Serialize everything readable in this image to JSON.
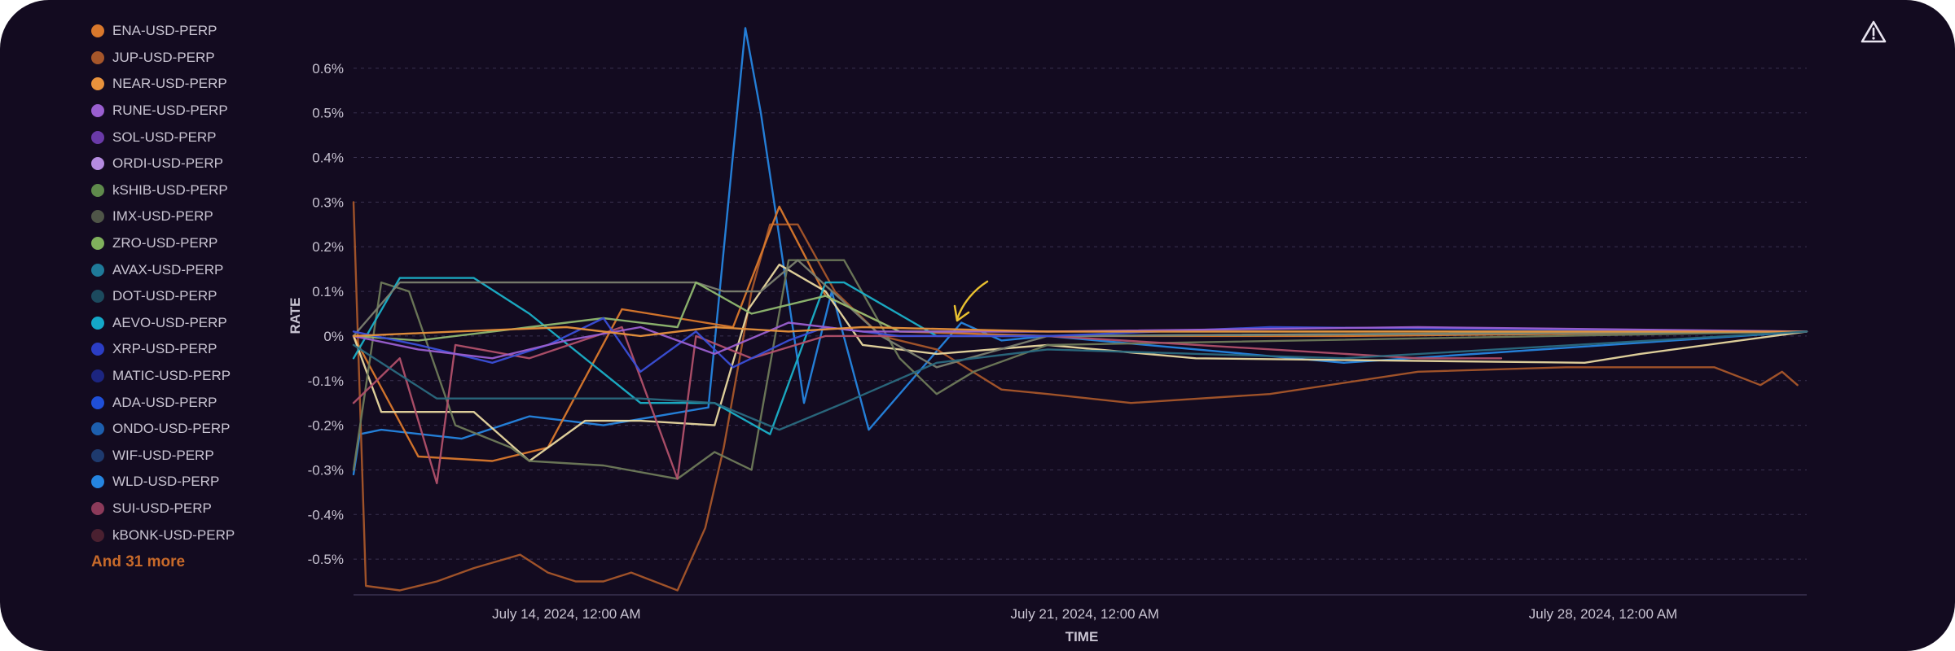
{
  "legend": {
    "items": [
      {
        "label": "ENA-USD-PERP",
        "color": "#d9782c"
      },
      {
        "label": "JUP-USD-PERP",
        "color": "#a6562a"
      },
      {
        "label": "NEAR-USD-PERP",
        "color": "#e8923c"
      },
      {
        "label": "RUNE-USD-PERP",
        "color": "#9a5fd0"
      },
      {
        "label": "SOL-USD-PERP",
        "color": "#6a3aa8"
      },
      {
        "label": "ORDI-USD-PERP",
        "color": "#b58be0"
      },
      {
        "label": "kSHIB-USD-PERP",
        "color": "#5f8a4c"
      },
      {
        "label": "IMX-USD-PERP",
        "color": "#4f5548"
      },
      {
        "label": "ZRO-USD-PERP",
        "color": "#7fb05c"
      },
      {
        "label": "AVAX-USD-PERP",
        "color": "#1f7a99"
      },
      {
        "label": "DOT-USD-PERP",
        "color": "#1c4a5e"
      },
      {
        "label": "AEVO-USD-PERP",
        "color": "#14a8c8"
      },
      {
        "label": "XRP-USD-PERP",
        "color": "#2b3dc4"
      },
      {
        "label": "MATIC-USD-PERP",
        "color": "#1c2580"
      },
      {
        "label": "ADA-USD-PERP",
        "color": "#1f4fd8"
      },
      {
        "label": "ONDO-USD-PERP",
        "color": "#1d5fae"
      },
      {
        "label": "WIF-USD-PERP",
        "color": "#1e3a6e"
      },
      {
        "label": "WLD-USD-PERP",
        "color": "#2585e0"
      },
      {
        "label": "SUI-USD-PERP",
        "color": "#8c3a5a"
      },
      {
        "label": "kBONK-USD-PERP",
        "color": "#4a2030"
      }
    ],
    "more_label": "And 31 more"
  },
  "toolbar": {
    "warning_icon": "warning-triangle-icon"
  },
  "chart_data": {
    "type": "line",
    "xlabel": "TIME",
    "ylabel": "RATE",
    "x_domain": [
      "2024-07-11T15:00",
      "2024-07-31T06:00"
    ],
    "x_ticks": [
      {
        "at": "2024-07-14T12:00",
        "label": "July 14, 2024, 12:00 AM"
      },
      {
        "at": "2024-07-21T12:00",
        "label": "July 21, 2024, 12:00 AM"
      },
      {
        "at": "2024-07-28T12:00",
        "label": "July 28, 2024, 12:00 AM"
      }
    ],
    "ylim": [
      -0.58,
      0.68
    ],
    "y_ticks": [
      0.6,
      0.5,
      0.4,
      0.3,
      0.2,
      0.1,
      0,
      -0.1,
      -0.2,
      -0.3,
      -0.4,
      -0.5
    ],
    "y_tick_labels": [
      "0.6%",
      "0.5%",
      "0.4%",
      "0.3%",
      "0.2%",
      "0.1%",
      "0%",
      "-0.1%",
      "-0.2%",
      "-0.3%",
      "-0.4%",
      "-0.5%"
    ],
    "grid": true,
    "legend_position": "left",
    "series": [
      {
        "name": "WLD-USD-PERP",
        "color": "#2585e0",
        "x": [
          "2024-07-11T15:00",
          "2024-07-11T17:00",
          "2024-07-12T00:00",
          "2024-07-13T02:00",
          "2024-07-14T00:00",
          "2024-07-15T00:00",
          "2024-07-16T10:00",
          "2024-07-16T22:00",
          "2024-07-17T03:00",
          "2024-07-17T17:00",
          "2024-07-18T02:00",
          "2024-07-18T14:00",
          "2024-07-19T20:00",
          "2024-07-20T09:00",
          "2024-07-21T00:00",
          "2024-07-25T00:00",
          "2024-07-31T06:00"
        ],
        "y": [
          -0.31,
          -0.22,
          -0.21,
          -0.23,
          -0.18,
          -0.2,
          -0.16,
          0.69,
          0.5,
          -0.15,
          0.1,
          -0.21,
          0.03,
          -0.01,
          0.0,
          -0.06,
          0.01
        ]
      },
      {
        "name": "JUP-USD-PERP",
        "color": "#a6562a",
        "x": [
          "2024-07-11T15:00",
          "2024-07-11T19:00",
          "2024-07-12T06:00",
          "2024-07-12T18:00",
          "2024-07-13T06:00",
          "2024-07-13T21:00",
          "2024-07-14T06:00",
          "2024-07-14T15:00",
          "2024-07-15T00:00",
          "2024-07-15T09:00",
          "2024-07-16T00:00",
          "2024-07-16T09:00",
          "2024-07-16T15:00",
          "2024-07-17T00:00",
          "2024-07-17T06:00",
          "2024-07-17T15:00",
          "2024-07-18T03:00",
          "2024-07-18T18:00",
          "2024-07-19T12:00",
          "2024-07-20T09:00",
          "2024-07-21T00:00",
          "2024-07-22T03:00",
          "2024-07-24T00:00",
          "2024-07-26T00:00",
          "2024-07-28T00:00",
          "2024-07-30T00:00",
          "2024-07-30T15:00",
          "2024-07-30T22:00",
          "2024-07-31T03:00"
        ],
        "y": [
          0.3,
          -0.56,
          -0.57,
          -0.55,
          -0.52,
          -0.49,
          -0.53,
          -0.55,
          -0.55,
          -0.53,
          -0.57,
          -0.43,
          -0.25,
          0.1,
          0.25,
          0.25,
          0.1,
          0.0,
          -0.03,
          -0.12,
          -0.13,
          -0.15,
          -0.13,
          -0.08,
          -0.07,
          -0.07,
          -0.11,
          -0.08,
          -0.11
        ]
      },
      {
        "name": "ENA-USD-PERP",
        "color": "#d9782c",
        "x": [
          "2024-07-11T15:00",
          "2024-07-12T12:00",
          "2024-07-13T12:00",
          "2024-07-14T06:00",
          "2024-07-15T06:00",
          "2024-07-16T00:00",
          "2024-07-16T18:00",
          "2024-07-17T09:00",
          "2024-07-18T00:00",
          "2024-07-19T00:00",
          "2024-07-21T00:00",
          "2024-07-25T00:00",
          "2024-07-31T06:00"
        ],
        "y": [
          0.0,
          -0.27,
          -0.28,
          -0.25,
          0.06,
          0.04,
          0.02,
          0.29,
          0.09,
          0.01,
          0.0,
          0.0,
          0.01
        ]
      },
      {
        "name": "ORDI-USD-PERP",
        "color": "#e8d8a0",
        "x": [
          "2024-07-11T15:00",
          "2024-07-12T00:00",
          "2024-07-13T06:00",
          "2024-07-14T00:00",
          "2024-07-14T18:00",
          "2024-07-15T12:00",
          "2024-07-16T12:00",
          "2024-07-16T23:00",
          "2024-07-17T09:00",
          "2024-07-18T00:00",
          "2024-07-18T12:00",
          "2024-07-19T12:00",
          "2024-07-21T00:00",
          "2024-07-23T00:00",
          "2024-07-28T06:00",
          "2024-07-29T00:00",
          "2024-07-31T06:00"
        ],
        "y": [
          0.0,
          -0.17,
          -0.17,
          -0.28,
          -0.19,
          -0.19,
          -0.2,
          0.06,
          0.16,
          0.1,
          -0.02,
          -0.04,
          -0.02,
          -0.05,
          -0.06,
          -0.04,
          0.01
        ]
      },
      {
        "name": "kSHIB-USD-PERP",
        "color": "#6e7a5a",
        "x": [
          "2024-07-11T15:00",
          "2024-07-12T00:00",
          "2024-07-12T09:00",
          "2024-07-13T00:00",
          "2024-07-13T18:00",
          "2024-07-14T00:00",
          "2024-07-15T00:00",
          "2024-07-16T00:00",
          "2024-07-16T12:00",
          "2024-07-17T00:00",
          "2024-07-17T12:00",
          "2024-07-18T06:00",
          "2024-07-19T00:00",
          "2024-07-19T12:00",
          "2024-07-20T00:00",
          "2024-07-21T00:00",
          "2024-07-31T06:00"
        ],
        "y": [
          -0.3,
          0.12,
          0.1,
          -0.2,
          -0.25,
          -0.28,
          -0.29,
          -0.32,
          -0.26,
          -0.3,
          0.17,
          0.17,
          -0.05,
          -0.13,
          -0.08,
          -0.02,
          0.01
        ]
      },
      {
        "name": "AVAX-USD-PERP",
        "color": "#1ab0c8",
        "x": [
          "2024-07-11T15:00",
          "2024-07-12T06:00",
          "2024-07-13T06:00",
          "2024-07-14T00:00",
          "2024-07-15T12:00",
          "2024-07-16T12:00",
          "2024-07-17T06:00",
          "2024-07-18T00:00",
          "2024-07-18T06:00",
          "2024-07-19T12:00",
          "2024-07-21T00:00",
          "2024-07-31T06:00"
        ],
        "y": [
          -0.05,
          0.13,
          0.13,
          0.05,
          -0.15,
          -0.15,
          -0.22,
          0.12,
          0.12,
          0.0,
          0.0,
          0.01
        ]
      },
      {
        "name": "IMX-USD-PERP",
        "color": "#7a7f70",
        "x": [
          "2024-07-11T15:00",
          "2024-07-12T06:00",
          "2024-07-16T06:00",
          "2024-07-16T15:00",
          "2024-07-17T03:00",
          "2024-07-17T15:00",
          "2024-07-18T18:00",
          "2024-07-19T12:00",
          "2024-07-21T00:00",
          "2024-07-31T06:00"
        ],
        "y": [
          0.0,
          0.12,
          0.12,
          0.1,
          0.1,
          0.17,
          0.0,
          -0.07,
          0.0,
          0.01
        ]
      },
      {
        "name": "ZRO-USD-PERP",
        "color": "#8fb870",
        "x": [
          "2024-07-11T15:00",
          "2024-07-12T12:00",
          "2024-07-14T00:00",
          "2024-07-15T00:00",
          "2024-07-16T00:00",
          "2024-07-16T06:00",
          "2024-07-17T00:00",
          "2024-07-18T00:00",
          "2024-07-19T00:00",
          "2024-07-21T00:00",
          "2024-07-31T06:00"
        ],
        "y": [
          0.0,
          -0.01,
          0.02,
          0.04,
          0.02,
          0.12,
          0.05,
          0.09,
          0.01,
          0.01,
          0.01
        ]
      },
      {
        "name": "SUI-USD-PERP",
        "color": "#b0506a",
        "x": [
          "2024-07-11T15:00",
          "2024-07-12T06:00",
          "2024-07-12T18:00",
          "2024-07-13T00:00",
          "2024-07-14T00:00",
          "2024-07-15T06:00",
          "2024-07-16T00:00",
          "2024-07-16T06:00",
          "2024-07-17T00:00",
          "2024-07-18T00:00",
          "2024-07-21T00:00",
          "2024-07-26T00:00",
          "2024-07-27T03:00"
        ],
        "y": [
          -0.15,
          -0.05,
          -0.33,
          -0.02,
          -0.05,
          0.02,
          -0.32,
          0.0,
          -0.05,
          0.0,
          0.0,
          -0.05,
          -0.05
        ]
      },
      {
        "name": "ADA-USD-PERP",
        "color": "#3a4fd8",
        "x": [
          "2024-07-11T15:00",
          "2024-07-12T12:00",
          "2024-07-13T12:00",
          "2024-07-14T06:00",
          "2024-07-15T00:00",
          "2024-07-15T12:00",
          "2024-07-16T06:00",
          "2024-07-16T18:00",
          "2024-07-17T12:00",
          "2024-07-18T00:00",
          "2024-07-19T00:00",
          "2024-07-21T00:00",
          "2024-07-24T00:00",
          "2024-07-31T06:00"
        ],
        "y": [
          0.01,
          -0.02,
          -0.06,
          -0.02,
          0.04,
          -0.08,
          0.01,
          -0.07,
          -0.01,
          0.02,
          0.0,
          0.0,
          0.02,
          0.01
        ]
      },
      {
        "name": "RUNE-USD-PERP",
        "color": "#9a5fd0",
        "x": [
          "2024-07-11T15:00",
          "2024-07-12T12:00",
          "2024-07-13T12:00",
          "2024-07-14T12:00",
          "2024-07-15T12:00",
          "2024-07-16T12:00",
          "2024-07-17T12:00",
          "2024-07-18T12:00",
          "2024-07-21T00:00",
          "2024-07-26T00:00",
          "2024-07-31T06:00"
        ],
        "y": [
          0.0,
          -0.03,
          -0.05,
          -0.01,
          0.02,
          -0.04,
          0.03,
          0.01,
          0.01,
          0.02,
          0.01
        ]
      },
      {
        "name": "NEAR-USD-PERP",
        "color": "#e8923c",
        "x": [
          "2024-07-11T15:00",
          "2024-07-13T00:00",
          "2024-07-14T12:00",
          "2024-07-15T12:00",
          "2024-07-16T12:00",
          "2024-07-17T12:00",
          "2024-07-18T12:00",
          "2024-07-21T00:00",
          "2024-07-31T06:00"
        ],
        "y": [
          0.0,
          0.01,
          0.02,
          0.0,
          0.02,
          0.01,
          0.02,
          0.01,
          0.01
        ]
      },
      {
        "name": "DOT-USD-PERP",
        "color": "#2a6a80",
        "x": [
          "2024-07-11T15:00",
          "2024-07-12T18:00",
          "2024-07-14T00:00",
          "2024-07-15T12:00",
          "2024-07-16T12:00",
          "2024-07-17T09:00",
          "2024-07-18T06:00",
          "2024-07-19T12:00",
          "2024-07-21T00:00",
          "2024-07-25T00:00",
          "2024-07-31T06:00"
        ],
        "y": [
          -0.02,
          -0.14,
          -0.14,
          -0.14,
          -0.15,
          -0.21,
          -0.15,
          -0.06,
          -0.03,
          -0.05,
          0.01
        ]
      }
    ],
    "annotation": {
      "type": "arrow",
      "color": "#e8c030"
    }
  }
}
